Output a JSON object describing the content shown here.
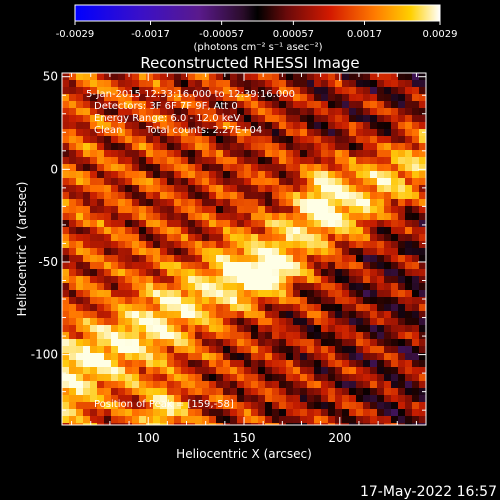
{
  "colorbar": {
    "ticks": [
      "-0.0029",
      "-0.0017",
      "-0.00057",
      "0.00057",
      "0.0017",
      "0.0029"
    ],
    "tick_values": [
      -0.0029,
      -0.0017,
      -0.00057,
      0.00057,
      0.0017,
      0.0029
    ],
    "range": [
      -0.0029,
      0.0029
    ],
    "units_label": "(photons cm⁻² s⁻¹ asec⁻²)"
  },
  "annotations": {
    "time_range": "5-Jan-2015 12:33:16.000 to 12:39:16.000",
    "detectors": "Detectors: 3F 6F 7F 9F, Att 0",
    "energy_range": "Energy Range: 6.0 - 12.0 keV",
    "clean_label": "Clean",
    "total_counts": "Total counts: 2.27E+04",
    "peak_position": "Position of Peak = [159,-58]"
  },
  "footer": {
    "timestamp": "17-May-2022 16:57"
  },
  "chart_data": {
    "type": "heatmap",
    "title": "Reconstructed RHESSI Image",
    "xlabel": "Heliocentric X (arcsec)",
    "ylabel": "Heliocentric Y (arcsec)",
    "xlim": [
      55,
      245
    ],
    "ylim": [
      -138,
      52
    ],
    "x_ticks": [
      {
        "value": 100,
        "label": "100"
      },
      {
        "value": 150,
        "label": "150"
      },
      {
        "value": 200,
        "label": "200"
      }
    ],
    "y_ticks": [
      {
        "value": 50,
        "label": "50"
      },
      {
        "value": 0,
        "label": "0"
      },
      {
        "value": -50,
        "label": "-50"
      },
      {
        "value": -100,
        "label": "-100"
      }
    ],
    "colormap": "RHESSI red-temperature (purple-black-red-yellow-white)",
    "peak": [
      159,
      -58
    ]
  }
}
